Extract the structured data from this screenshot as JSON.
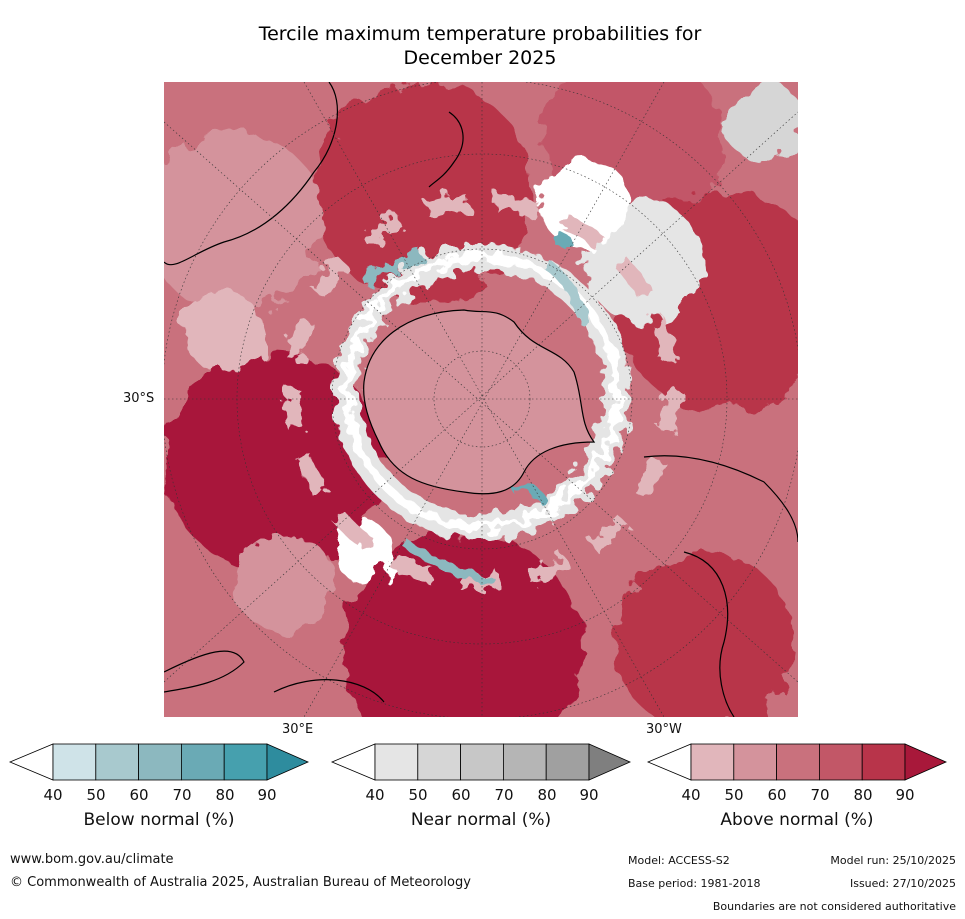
{
  "title_line1": "Tercile maximum temperature probabilities for",
  "title_line2": "December 2025",
  "map_labels": {
    "lat_30s": "30°S",
    "lon_30e": "30°E",
    "lon_30w": "30°W"
  },
  "colorbars": [
    {
      "caption": "Below normal (%)",
      "ticks": [
        "40",
        "50",
        "60",
        "70",
        "80",
        "90"
      ],
      "colors": [
        "#ffffff",
        "#cfe3e8",
        "#a8c9ce",
        "#8cb8bf",
        "#6aaab5",
        "#46a0ae",
        "#2e8c9e"
      ]
    },
    {
      "caption": "Near normal (%)",
      "ticks": [
        "40",
        "50",
        "60",
        "70",
        "80",
        "90"
      ],
      "colors": [
        "#ffffff",
        "#e5e5e5",
        "#d6d6d6",
        "#c7c7c7",
        "#b5b5b5",
        "#a0a0a0",
        "#7f7f7f"
      ]
    },
    {
      "caption": "Above normal (%)",
      "ticks": [
        "40",
        "50",
        "60",
        "70",
        "80",
        "90"
      ],
      "colors": [
        "#ffffff",
        "#e1b6bb",
        "#d4939c",
        "#c9717d",
        "#c25767",
        "#b8344a",
        "#a8183a"
      ]
    }
  ],
  "footer": {
    "website": "www.bom.gov.au/climate",
    "copyright": "© Commonwealth of Australia 2025, Australian Bureau of Meteorology",
    "model": "Model: ACCESS-S2",
    "model_run": "Model run: 25/10/2025",
    "base_period": "Base period: 1981-2018",
    "issued": "Issued: 27/10/2025",
    "disclaimer": "Boundaries are not considered authoritative"
  }
}
